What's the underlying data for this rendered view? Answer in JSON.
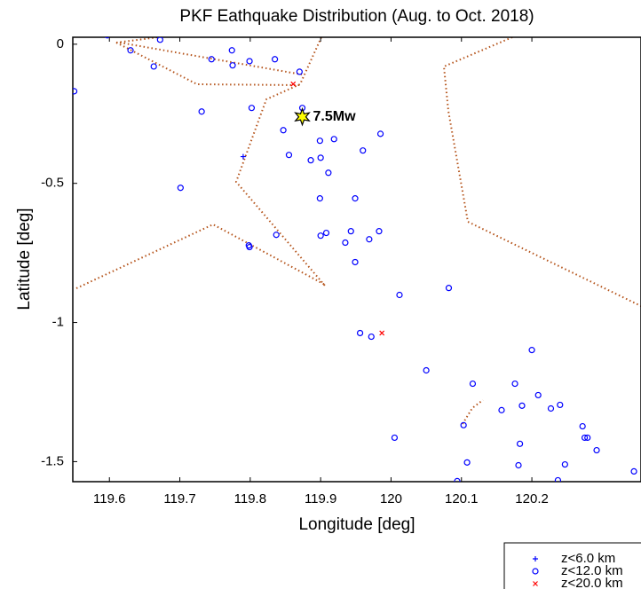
{
  "chart_data": {
    "type": "scatter",
    "title": "PKF Eathquake Distribution (Aug. to Oct. 2018)",
    "x_label": "Longitude [deg]",
    "y_label": "Latitude [deg]",
    "xlim": [
      119.548,
      120.355
    ],
    "ylim": [
      -1.572,
      0.025
    ],
    "xticks": [
      119.6,
      119.7,
      119.8,
      119.9,
      120,
      120.1,
      120.2
    ],
    "yticks": [
      0,
      -0.5,
      -1,
      -1.5
    ],
    "legend": "lower right",
    "annotations": [
      {
        "text": "7.5Mw",
        "x": 119.874,
        "y": -0.261,
        "color": "#ffff00"
      }
    ],
    "series": [
      {
        "name": "z<6.0 km",
        "marker": "plus",
        "color": "#0000ff",
        "x": [
          119.79
        ],
        "y": [
          -0.404
        ]
      },
      {
        "name": "z<12.0 km",
        "marker": "circle",
        "color": "#0000ff",
        "x": [
          119.597,
          119.63,
          119.672,
          119.663,
          119.55,
          119.745,
          119.774,
          119.775,
          119.799,
          119.835,
          119.87,
          119.731,
          119.802,
          119.847,
          119.874,
          119.701,
          119.855,
          119.886,
          119.899,
          119.919,
          119.9,
          119.911,
          119.96,
          119.985,
          119.899,
          119.949,
          119.798,
          119.799,
          119.837,
          119.9,
          119.908,
          119.935,
          119.943,
          119.969,
          119.983,
          119.949,
          120.012,
          120.082,
          119.956,
          119.972,
          120.05,
          120.2,
          120.116,
          120.176,
          120.209,
          120.186,
          120.157,
          120.24,
          120.227,
          120.272,
          120.103,
          120.275,
          120.279,
          120.183,
          120.292,
          120.005,
          120.108,
          120.181,
          120.247,
          120.094,
          120.237,
          120.345
        ],
        "y": [
          0.032,
          -0.022,
          0.016,
          -0.08,
          -0.169,
          -0.054,
          -0.022,
          -0.076,
          -0.061,
          -0.054,
          -0.099,
          -0.242,
          -0.229,
          -0.309,
          -0.229,
          -0.516,
          -0.398,
          -0.417,
          -0.347,
          -0.341,
          -0.408,
          -0.462,
          -0.382,
          -0.322,
          -0.554,
          -0.554,
          -0.723,
          -0.729,
          -0.685,
          -0.688,
          -0.678,
          -0.713,
          -0.672,
          -0.701,
          -0.672,
          -0.783,
          -0.901,
          -0.876,
          -1.038,
          -1.051,
          -1.172,
          -1.099,
          -1.22,
          -1.22,
          -1.261,
          -1.299,
          -1.315,
          -1.296,
          -1.309,
          -1.373,
          -1.369,
          -1.414,
          -1.414,
          -1.436,
          -1.459,
          -1.414,
          -1.503,
          -1.513,
          -1.51,
          -1.57,
          -1.567,
          -1.535
        ]
      },
      {
        "name": "z<20.0 km",
        "marker": "x",
        "color": "#ff0000",
        "x": [
          119.861,
          119.987
        ],
        "y": [
          -0.143,
          -1.038
        ]
      }
    ]
  }
}
